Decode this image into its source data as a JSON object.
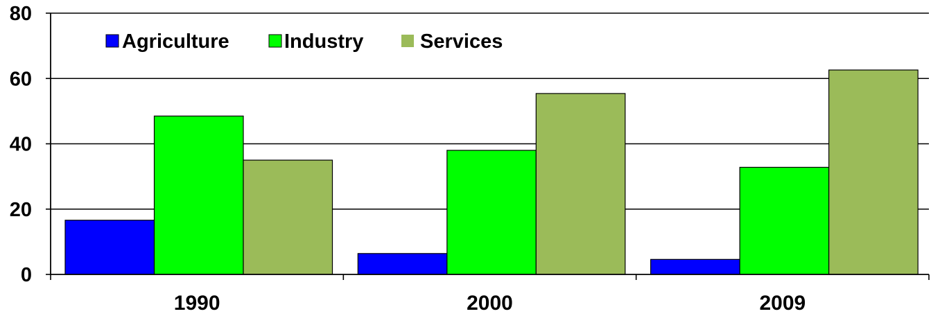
{
  "chart_data": {
    "type": "bar",
    "title": "",
    "xlabel": "",
    "ylabel": "",
    "categories": [
      "1990",
      "2000",
      "2009"
    ],
    "series": [
      {
        "name": "Agriculture",
        "color": "#0000ff",
        "values": [
          16.6,
          6.4,
          4.6
        ]
      },
      {
        "name": "Industry",
        "color": "#00ff00",
        "values": [
          48.5,
          38.0,
          32.8
        ]
      },
      {
        "name": "Services",
        "color": "#9bbb59",
        "values": [
          35.0,
          55.4,
          62.6
        ]
      }
    ],
    "ylim": [
      0,
      80
    ],
    "yticks": [
      "0",
      "20",
      "40",
      "60",
      "80"
    ],
    "grid": true,
    "legend_position": "top-left"
  }
}
